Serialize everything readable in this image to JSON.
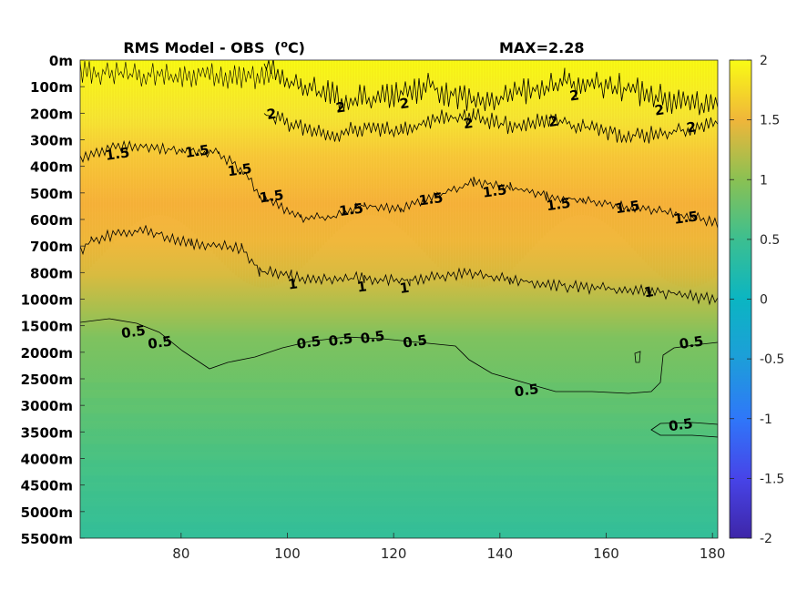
{
  "chart_data": {
    "type": "heatmap",
    "title": "RMS Model - OBS",
    "title_unit_base": "(",
    "title_unit_sup": "o",
    "title_unit_rest": "C)",
    "max_label": "MAX=2.28",
    "xlabel": "",
    "ylabel": "",
    "xlim": [
      61,
      181
    ],
    "x_ticks": [
      80,
      100,
      120,
      140,
      160,
      180
    ],
    "y_tick_labels": [
      "0m",
      "100m",
      "200m",
      "300m",
      "400m",
      "500m",
      "600m",
      "700m",
      "800m",
      "1000m",
      "1500m",
      "2000m",
      "2500m",
      "3000m",
      "3500m",
      "4000m",
      "4500m",
      "5000m",
      "5500m"
    ],
    "colorbar": {
      "range": [
        -2,
        2
      ],
      "ticks": [
        "2",
        "1.5",
        "1",
        "0.5",
        "0",
        "-0.5",
        "-1",
        "-1.5",
        "-2"
      ],
      "colormap": "parula"
    },
    "contours": [
      {
        "level": 2,
        "labels": [
          {
            "text": "2",
            "x": 97,
            "y": 200
          },
          {
            "text": "2",
            "x": 110,
            "y": 175
          },
          {
            "text": "2",
            "x": 122,
            "y": 160
          },
          {
            "text": "2",
            "x": 134,
            "y": 235
          },
          {
            "text": "2",
            "x": 150,
            "y": 228
          },
          {
            "text": "2",
            "x": 154,
            "y": 130
          },
          {
            "text": "2",
            "x": 170,
            "y": 185
          },
          {
            "text": "2",
            "x": 176,
            "y": 250
          }
        ]
      },
      {
        "level": 1.5,
        "labels": [
          {
            "text": "1.5",
            "x": 68,
            "y": 350
          },
          {
            "text": "1.5",
            "x": 83,
            "y": 340
          },
          {
            "text": "1.5",
            "x": 91,
            "y": 410
          },
          {
            "text": "1.5",
            "x": 97,
            "y": 510
          },
          {
            "text": "1.5",
            "x": 112,
            "y": 560
          },
          {
            "text": "1.5",
            "x": 127,
            "y": 520
          },
          {
            "text": "1.5",
            "x": 139,
            "y": 490
          },
          {
            "text": "1.5",
            "x": 151,
            "y": 540
          },
          {
            "text": "1.5",
            "x": 164,
            "y": 550
          },
          {
            "text": "1.5",
            "x": 175,
            "y": 590
          }
        ]
      },
      {
        "level": 1,
        "labels": [
          {
            "text": "1",
            "x": 101,
            "y": 880
          },
          {
            "text": "1",
            "x": 114,
            "y": 900
          },
          {
            "text": "1",
            "x": 122,
            "y": 910
          },
          {
            "text": "1",
            "x": 168,
            "y": 940
          }
        ]
      },
      {
        "level": 0.5,
        "labels": [
          {
            "text": "0.5",
            "x": 71,
            "y": 1600
          },
          {
            "text": "0.5",
            "x": 76,
            "y": 1800
          },
          {
            "text": "0.5",
            "x": 104,
            "y": 1800
          },
          {
            "text": "0.5",
            "x": 110,
            "y": 1750
          },
          {
            "text": "0.5",
            "x": 116,
            "y": 1700
          },
          {
            "text": "0.5",
            "x": 124,
            "y": 1780
          },
          {
            "text": "0.5",
            "x": 145,
            "y": 2700
          },
          {
            "text": "0.5",
            "x": 174,
            "y": 3350
          },
          {
            "text": "0.5",
            "x": 176,
            "y": 1800
          }
        ]
      }
    ],
    "grid": false,
    "legend": "none"
  }
}
